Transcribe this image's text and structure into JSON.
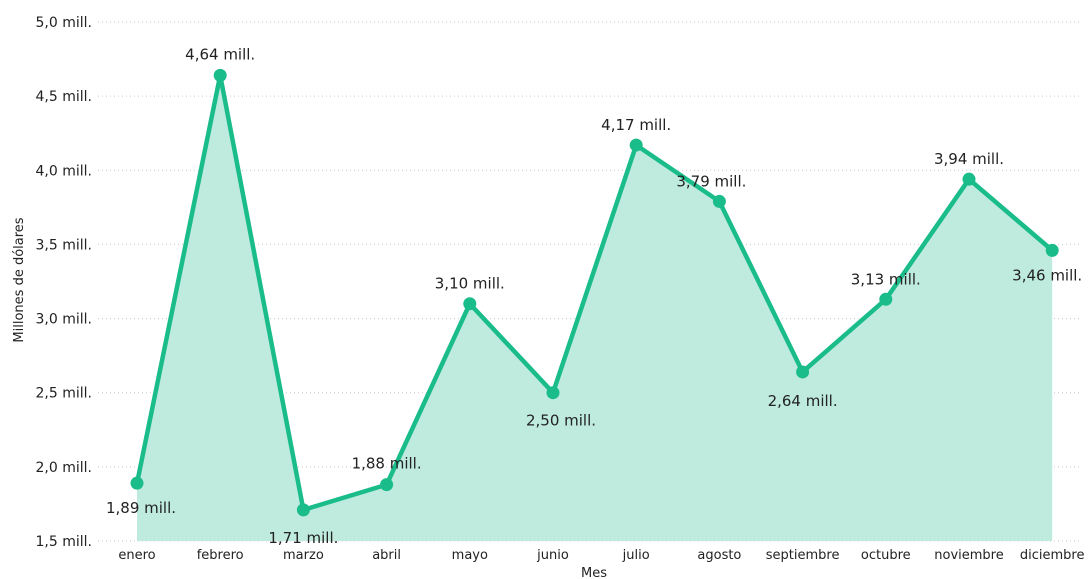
{
  "chart_data": {
    "type": "area",
    "title": "",
    "xlabel": "Mes",
    "ylabel": "Millones de dólares",
    "ylim": [
      1.5,
      5.0
    ],
    "yticks": [
      {
        "value": 1.5,
        "label": "1,5 mill."
      },
      {
        "value": 2.0,
        "label": "2,0 mill."
      },
      {
        "value": 2.5,
        "label": "2,5 mill."
      },
      {
        "value": 3.0,
        "label": "3,0 mill."
      },
      {
        "value": 3.5,
        "label": "3,5 mill."
      },
      {
        "value": 4.0,
        "label": "4,0 mill."
      },
      {
        "value": 4.5,
        "label": "4,5 mill."
      },
      {
        "value": 5.0,
        "label": "5,0 mill."
      }
    ],
    "categories": [
      "enero",
      "febrero",
      "marzo",
      "abril",
      "mayo",
      "junio",
      "julio",
      "agosto",
      "septiembre",
      "octubre",
      "noviembre",
      "diciembre"
    ],
    "series": [
      {
        "values": [
          1.89,
          4.64,
          1.71,
          1.88,
          3.1,
          2.5,
          4.17,
          3.79,
          2.64,
          3.13,
          3.94,
          3.46
        ],
        "labels": [
          "1,89 mill.",
          "4,64 mill.",
          "1,71 mill.",
          "1,88 mill.",
          "3,10 mill.",
          "2,50 mill.",
          "4,17 mill.",
          "3,79 mill.",
          "2,64 mill.",
          "3,13 mill.",
          "3,94 mill.",
          "3,46 mill."
        ]
      }
    ],
    "grid": true,
    "colors": {
      "line": "#1ABC8A",
      "area": "#BEEBDD"
    }
  }
}
